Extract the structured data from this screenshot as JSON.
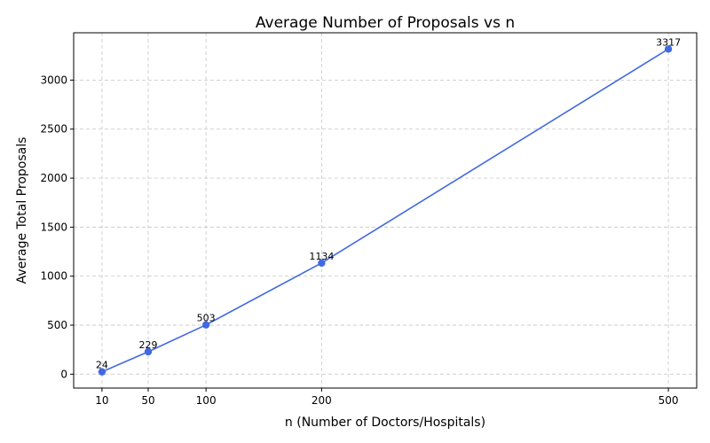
{
  "chart_data": {
    "type": "line",
    "title": "Average Number of Proposals vs n",
    "xlabel": "n (Number of Doctors/Hospitals)",
    "ylabel": "Average Total Proposals",
    "x": [
      10,
      50,
      100,
      200,
      500
    ],
    "series": [
      {
        "values": [
          24,
          229,
          503,
          1134,
          3317
        ],
        "color": "#4169E1"
      }
    ],
    "data_labels": [
      "24",
      "229",
      "503",
      "1134",
      "3317"
    ],
    "xticks": [
      10,
      50,
      100,
      200,
      500
    ],
    "yticks": [
      0,
      500,
      1000,
      1500,
      2000,
      2500,
      3000
    ],
    "xlim": [
      -14.5,
      524.5
    ],
    "ylim": [
      -141.7,
      3482.7
    ],
    "grid": true,
    "marker": "circle"
  }
}
